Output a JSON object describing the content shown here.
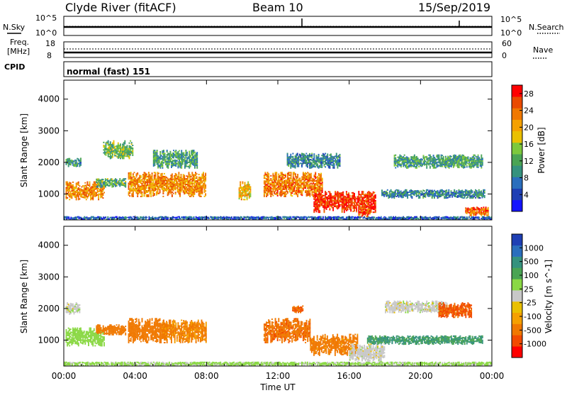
{
  "header": {
    "station": "Clyde River (fitACF)",
    "beam": "Beam 10",
    "date": "15/Sep/2019"
  },
  "params": {
    "nsky_label": "N.Sky",
    "freq_label_1": "Freq.",
    "freq_label_2": "[MHz]",
    "cpid_label": "CPID",
    "nsearch_label": "N.Search",
    "nave_label": "Nave",
    "cpid_value": "normal (fast) 151",
    "noise_ticks_left": [
      "10^5",
      "10^0"
    ],
    "noise_ticks_right": [
      "10^5",
      "10^0"
    ],
    "freq_ticks": [
      "18",
      "8"
    ],
    "nave_ticks": [
      "60",
      "0"
    ]
  },
  "colors": {
    "power_scale": [
      "#1414ff",
      "#1e3fb4",
      "#2a6ebd",
      "#35927e",
      "#4aa454",
      "#7dc83c",
      "#eac000",
      "#f5a000",
      "#f07800",
      "#ea4a00",
      "#ff0000"
    ],
    "velocity_scale": [
      "#ff0000",
      "#f24a00",
      "#f07800",
      "#f5a000",
      "#eac000",
      "#c8c8c8",
      "#8ad844",
      "#4aa454",
      "#35927e",
      "#2a6ebd",
      "#1e3fb4"
    ]
  },
  "chart_data": [
    {
      "type": "heatmap",
      "name": "power",
      "xlabel": "",
      "ylabel": "Slant Range [km]",
      "colorbar_label": "Power [dB]",
      "colorbar_ticks": [
        "4",
        "8",
        "12",
        "16",
        "20",
        "24",
        "28"
      ],
      "colorbar_range": [
        0,
        30
      ],
      "x_ticks": [
        "00:00",
        "04:00",
        "08:00",
        "12:00",
        "16:00",
        "20:00",
        "00:00"
      ],
      "x_range_hours": [
        0,
        24
      ],
      "y_ticks": [
        "1000",
        "2000",
        "3000",
        "4000"
      ],
      "y_range": [
        180,
        4600
      ],
      "regions": [
        {
          "t0": 0.1,
          "t1": 2.3,
          "r0": 800,
          "r1": 1400,
          "v": 22
        },
        {
          "t0": 0.1,
          "t1": 1.0,
          "r0": 1850,
          "r1": 2150,
          "v": 10
        },
        {
          "t0": 1.8,
          "t1": 3.5,
          "r0": 1200,
          "r1": 1500,
          "v": 12
        },
        {
          "t0": 3.6,
          "t1": 8.0,
          "r0": 900,
          "r1": 1700,
          "v": 22
        },
        {
          "t0": 5.0,
          "t1": 7.5,
          "r0": 1800,
          "r1": 2400,
          "v": 11
        },
        {
          "t0": 2.2,
          "t1": 3.9,
          "r0": 2100,
          "r1": 2700,
          "v": 13
        },
        {
          "t0": 9.8,
          "t1": 10.5,
          "r0": 800,
          "r1": 1400,
          "v": 20
        },
        {
          "t0": 11.2,
          "t1": 14.5,
          "r0": 900,
          "r1": 1700,
          "v": 23
        },
        {
          "t0": 14.0,
          "t1": 17.5,
          "r0": 400,
          "r1": 1100,
          "v": 27
        },
        {
          "t0": 16.5,
          "t1": 17.2,
          "r0": 220,
          "r1": 600,
          "v": 26
        },
        {
          "t0": 12.5,
          "t1": 15.5,
          "r0": 1800,
          "r1": 2300,
          "v": 9
        },
        {
          "t0": 17.8,
          "t1": 23.6,
          "r0": 850,
          "r1": 1150,
          "v": 9
        },
        {
          "t0": 18.5,
          "t1": 23.5,
          "r0": 1800,
          "r1": 2250,
          "v": 11
        },
        {
          "t0": 22.5,
          "t1": 23.8,
          "r0": 300,
          "r1": 600,
          "v": 24
        },
        {
          "t0": 0.0,
          "t1": 24.0,
          "r0": 180,
          "r1": 300,
          "v": 6
        }
      ]
    },
    {
      "type": "heatmap",
      "name": "velocity",
      "xlabel": "Time UT",
      "ylabel": "Slant Range [km]",
      "colorbar_label": "Velocity [m s^-1]",
      "colorbar_ticks": [
        "1000",
        "500",
        "100",
        "25",
        "-25",
        "-100",
        "-500",
        "-1000"
      ],
      "x_ticks": [
        "00:00",
        "04:00",
        "08:00",
        "12:00",
        "16:00",
        "20:00",
        "00:00"
      ],
      "x_range_hours": [
        0,
        24
      ],
      "y_ticks": [
        "1000",
        "2000",
        "3000",
        "4000"
      ],
      "y_range": [
        180,
        4600
      ],
      "regions": [
        {
          "t0": 0.1,
          "t1": 2.3,
          "r0": 800,
          "r1": 1400,
          "v": 60
        },
        {
          "t0": 0.1,
          "t1": 0.9,
          "r0": 1800,
          "r1": 2200,
          "v": 0
        },
        {
          "t0": 1.8,
          "t1": 3.5,
          "r0": 1150,
          "r1": 1500,
          "v": -300
        },
        {
          "t0": 3.6,
          "t1": 5.8,
          "r0": 900,
          "r1": 1700,
          "v": -250
        },
        {
          "t0": 5.5,
          "t1": 8.0,
          "r0": 900,
          "r1": 1650,
          "v": -120
        },
        {
          "t0": 11.2,
          "t1": 13.8,
          "r0": 900,
          "r1": 1700,
          "v": -400
        },
        {
          "t0": 13.8,
          "t1": 16.5,
          "r0": 500,
          "r1": 1200,
          "v": -150
        },
        {
          "t0": 16.0,
          "t1": 18.0,
          "r0": 300,
          "r1": 900,
          "v": 0
        },
        {
          "t0": 17.0,
          "t1": 23.5,
          "r0": 850,
          "r1": 1150,
          "v": 300
        },
        {
          "t0": 18.0,
          "t1": 21.5,
          "r0": 1850,
          "r1": 2250,
          "v": 0
        },
        {
          "t0": 21.0,
          "t1": 22.9,
          "r0": 1700,
          "r1": 2200,
          "v": -600
        },
        {
          "t0": 12.8,
          "t1": 13.4,
          "r0": 1850,
          "r1": 2100,
          "v": -500
        },
        {
          "t0": 0.0,
          "t1": 24.0,
          "r0": 180,
          "r1": 320,
          "v": 40
        }
      ]
    }
  ]
}
